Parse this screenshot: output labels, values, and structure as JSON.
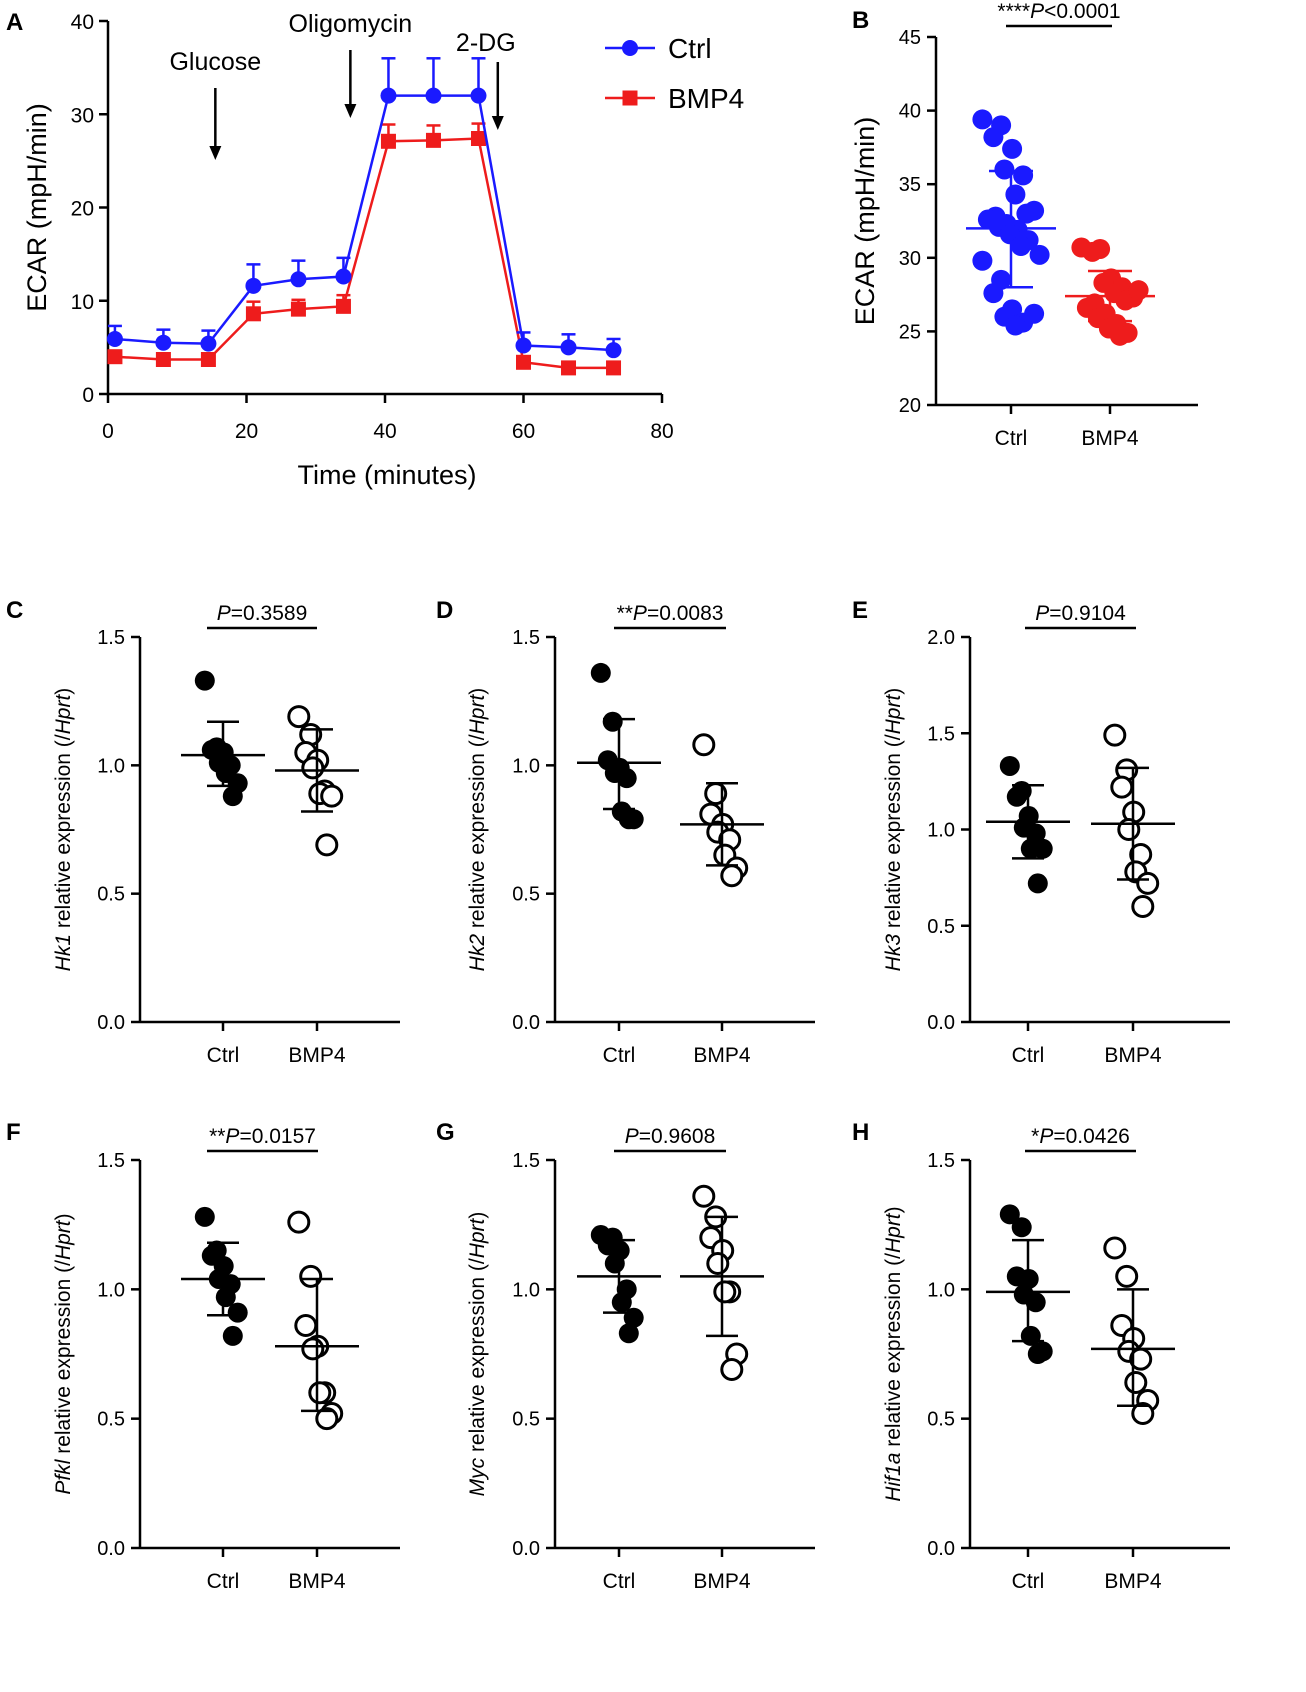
{
  "chart_data": [
    {
      "panel": "A",
      "type": "line",
      "xlabel": "Time (minutes)",
      "ylabel": "ECAR (mpH/min)",
      "xlim": [
        0,
        80
      ],
      "ylim": [
        0,
        40
      ],
      "xticks": [
        0,
        20,
        40,
        60,
        80
      ],
      "yticks": [
        0,
        10,
        20,
        30,
        40
      ],
      "annotations": [
        {
          "label": "Glucose",
          "x": 15.5
        },
        {
          "label": "Oligomycin",
          "x": 35
        },
        {
          "label": "2-DG",
          "x": 56
        }
      ],
      "series": [
        {
          "name": "Ctrl",
          "color": "#1a1aff",
          "marker": "circle",
          "x": [
            1,
            8,
            14.5,
            21,
            27.5,
            34,
            40.5,
            47,
            53.5,
            60,
            66.5,
            73
          ],
          "values": [
            5.9,
            5.5,
            5.4,
            11.6,
            12.3,
            12.6,
            32,
            32,
            32,
            5.2,
            5.0,
            4.7
          ],
          "errors": [
            1.4,
            1.4,
            1.4,
            2.3,
            2.0,
            2.0,
            4.0,
            4.0,
            4.0,
            1.4,
            1.4,
            1.2
          ]
        },
        {
          "name": "BMP4",
          "color": "#ee1c1c",
          "marker": "square",
          "x": [
            1,
            8,
            14.5,
            21,
            27.5,
            34,
            40.5,
            47,
            53.5,
            60,
            66.5,
            73
          ],
          "values": [
            4.0,
            3.7,
            3.7,
            8.6,
            9.1,
            9.4,
            27.1,
            27.2,
            27.4,
            3.4,
            2.8,
            2.8
          ],
          "errors": [
            0.6,
            0.6,
            0.6,
            1.3,
            1.0,
            1.2,
            1.8,
            1.6,
            1.6,
            0.6,
            0.4,
            0.4
          ]
        }
      ]
    },
    {
      "panel": "B",
      "type": "scatter",
      "ylabel": "ECAR (mpH/min)",
      "ylim": [
        20,
        45
      ],
      "yticks": [
        20,
        25,
        30,
        35,
        40,
        45
      ],
      "categories": [
        "Ctrl",
        "BMP4"
      ],
      "significance": {
        "stars": "****",
        "p": "P",
        "text": "<0.0001"
      },
      "groups": [
        {
          "name": "Ctrl",
          "color": "#1a1aff",
          "mean": 32.0,
          "sd_low": 28.0,
          "sd_high": 35.9,
          "points": [
            39.4,
            39.0,
            38.2,
            37.4,
            36.0,
            35.6,
            34.3,
            33.2,
            33.0,
            32.8,
            32.6,
            32.3,
            32.1,
            31.9,
            31.6,
            31.2,
            30.8,
            30.2,
            29.8,
            28.5,
            27.6,
            26.5,
            26.0,
            25.6,
            25.4,
            26.2
          ]
        },
        {
          "name": "BMP4",
          "color": "#ee1c1c",
          "mean": 27.4,
          "sd_low": 25.7,
          "sd_high": 29.1,
          "points": [
            30.7,
            30.6,
            30.4,
            28.6,
            28.3,
            28.0,
            27.6,
            27.3,
            27.1,
            26.9,
            26.6,
            26.2,
            25.9,
            25.5,
            25.2,
            24.9,
            24.7,
            27.8
          ]
        }
      ]
    },
    {
      "panel": "C",
      "type": "scatter",
      "gene": "Hk1",
      "ylabel_suffix": " relative expression (/",
      "ylabel_ref": "Hprt",
      "ylabel_end": ")",
      "ylim": [
        0,
        1.5
      ],
      "yticks": [
        "0.0",
        "0.5",
        "1.0",
        "1.5"
      ],
      "categories": [
        "Ctrl",
        "BMP4"
      ],
      "significance": {
        "stars": "",
        "p": "P",
        "text": "=0.3589"
      },
      "groups": [
        {
          "name": "Ctrl",
          "filled": true,
          "mean": 1.04,
          "sd_low": 0.92,
          "sd_high": 1.17,
          "points": [
            1.33,
            1.07,
            1.06,
            1.05,
            1.01,
            1.0,
            0.97,
            0.93,
            0.88
          ]
        },
        {
          "name": "BMP4",
          "filled": false,
          "mean": 0.98,
          "sd_low": 0.82,
          "sd_high": 1.14,
          "points": [
            1.19,
            1.12,
            1.05,
            1.02,
            0.99,
            0.9,
            0.89,
            0.88,
            0.69
          ]
        }
      ]
    },
    {
      "panel": "D",
      "type": "scatter",
      "gene": "Hk2",
      "ylabel_suffix": " relative expression (/",
      "ylabel_ref": "Hprt",
      "ylabel_end": ")",
      "ylim": [
        0,
        1.5
      ],
      "yticks": [
        "0.0",
        "0.5",
        "1.0",
        "1.5"
      ],
      "categories": [
        "Ctrl",
        "BMP4"
      ],
      "significance": {
        "stars": "**",
        "p": "P",
        "text": "=0.0083"
      },
      "groups": [
        {
          "name": "Ctrl",
          "filled": true,
          "mean": 1.01,
          "sd_low": 0.83,
          "sd_high": 1.18,
          "points": [
            1.36,
            1.17,
            1.02,
            0.99,
            0.97,
            0.95,
            0.82,
            0.79,
            0.79
          ]
        },
        {
          "name": "BMP4",
          "filled": false,
          "mean": 0.77,
          "sd_low": 0.61,
          "sd_high": 0.93,
          "points": [
            1.08,
            0.89,
            0.81,
            0.77,
            0.74,
            0.71,
            0.65,
            0.6,
            0.57
          ]
        }
      ]
    },
    {
      "panel": "E",
      "type": "scatter",
      "gene": "Hk3",
      "ylabel_suffix": " relative expression (/",
      "ylabel_ref": "Hprt",
      "ylabel_end": ")",
      "ylim": [
        0,
        2.0
      ],
      "yticks": [
        "0.0",
        "0.5",
        "1.0",
        "1.5",
        "2.0"
      ],
      "categories": [
        "Ctrl",
        "BMP4"
      ],
      "significance": {
        "stars": "",
        "p": "P",
        "text": "=0.9104"
      },
      "groups": [
        {
          "name": "Ctrl",
          "filled": true,
          "mean": 1.04,
          "sd_low": 0.85,
          "sd_high": 1.23,
          "points": [
            1.33,
            1.2,
            1.17,
            1.07,
            1.01,
            0.98,
            0.9,
            0.9,
            0.72
          ]
        },
        {
          "name": "BMP4",
          "filled": false,
          "mean": 1.03,
          "sd_low": 0.74,
          "sd_high": 1.32,
          "points": [
            1.49,
            1.31,
            1.22,
            1.09,
            1.0,
            0.87,
            0.78,
            0.72,
            0.6
          ]
        }
      ]
    },
    {
      "panel": "F",
      "type": "scatter",
      "gene": "Pfkl",
      "ylabel_suffix": " relative expression (/",
      "ylabel_ref": "Hprt",
      "ylabel_end": ")",
      "ylim": [
        0,
        1.5
      ],
      "yticks": [
        "0.0",
        "0.5",
        "1.0",
        "1.5"
      ],
      "categories": [
        "Ctrl",
        "BMP4"
      ],
      "significance": {
        "stars": "**",
        "p": "P",
        "text": "=0.0157"
      },
      "groups": [
        {
          "name": "Ctrl",
          "filled": true,
          "mean": 1.04,
          "sd_low": 0.9,
          "sd_high": 1.18,
          "points": [
            1.28,
            1.15,
            1.13,
            1.09,
            1.04,
            1.02,
            0.97,
            0.91,
            0.82
          ]
        },
        {
          "name": "BMP4",
          "filled": false,
          "mean": 0.78,
          "sd_low": 0.53,
          "sd_high": 1.04,
          "points": [
            1.26,
            1.05,
            0.86,
            0.78,
            0.77,
            0.6,
            0.6,
            0.52,
            0.5
          ]
        }
      ]
    },
    {
      "panel": "G",
      "type": "scatter",
      "gene": "Myc",
      "ylabel_suffix": " relative expression (/",
      "ylabel_ref": "Hprt",
      "ylabel_end": ")",
      "ylim": [
        0,
        1.5
      ],
      "yticks": [
        "0.0",
        "0.5",
        "1.0",
        "1.5"
      ],
      "categories": [
        "Ctrl",
        "BMP4"
      ],
      "significance": {
        "stars": "",
        "p": "P",
        "text": "=0.9608"
      },
      "groups": [
        {
          "name": "Ctrl",
          "filled": true,
          "mean": 1.05,
          "sd_low": 0.91,
          "sd_high": 1.19,
          "points": [
            1.21,
            1.2,
            1.17,
            1.15,
            1.1,
            1.0,
            0.95,
            0.89,
            0.83
          ]
        },
        {
          "name": "BMP4",
          "filled": false,
          "mean": 1.05,
          "sd_low": 0.82,
          "sd_high": 1.28,
          "points": [
            1.36,
            1.28,
            1.2,
            1.15,
            1.1,
            0.99,
            0.99,
            0.75,
            0.69
          ]
        }
      ]
    },
    {
      "panel": "H",
      "type": "scatter",
      "gene": "Hif1a",
      "ylabel_suffix": " relative expression (/",
      "ylabel_ref": "Hprt",
      "ylabel_end": ")",
      "ylim": [
        0,
        1.5
      ],
      "yticks": [
        "0.0",
        "0.5",
        "1.0",
        "1.5"
      ],
      "categories": [
        "Ctrl",
        "BMP4"
      ],
      "significance": {
        "stars": "*",
        "p": "P",
        "text": "=0.0426"
      },
      "groups": [
        {
          "name": "Ctrl",
          "filled": true,
          "mean": 0.99,
          "sd_low": 0.8,
          "sd_high": 1.19,
          "points": [
            1.29,
            1.24,
            1.05,
            1.04,
            0.98,
            0.95,
            0.82,
            0.76,
            0.75
          ]
        },
        {
          "name": "BMP4",
          "filled": false,
          "mean": 0.77,
          "sd_low": 0.55,
          "sd_high": 1.0,
          "points": [
            1.16,
            1.05,
            0.86,
            0.81,
            0.76,
            0.73,
            0.64,
            0.57,
            0.52
          ]
        }
      ]
    }
  ]
}
